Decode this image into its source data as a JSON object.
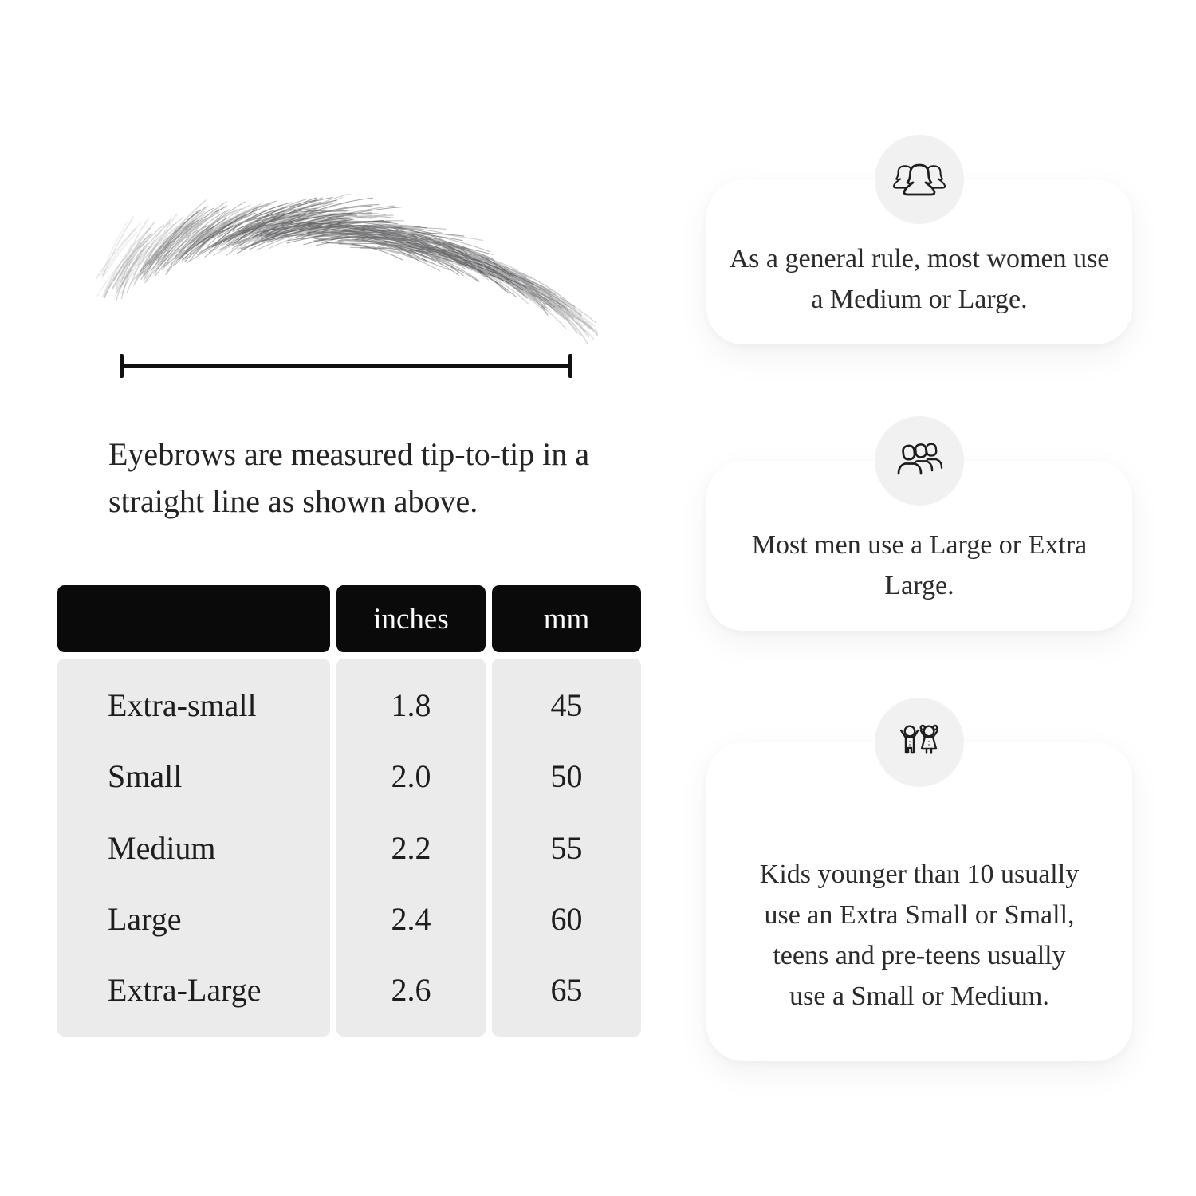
{
  "page": {
    "background": "#ffffff"
  },
  "figure": {
    "illustration": "hand-drawn eyebrow sketch measured tip to tip",
    "caption": "Eyebrows are measured tip-to-tip in a straight line as shown above."
  },
  "size_table": {
    "columns": [
      "",
      "inches",
      "mm"
    ],
    "rows": [
      {
        "size": "Extra-small",
        "inches": "1.8",
        "mm": "45"
      },
      {
        "size": "Small",
        "inches": "2.0",
        "mm": "50"
      },
      {
        "size": "Medium",
        "inches": "2.2",
        "mm": "55"
      },
      {
        "size": "Large",
        "inches": "2.4",
        "mm": "60"
      },
      {
        "size": "Extra-Large",
        "inches": "2.6",
        "mm": "65"
      }
    ]
  },
  "info_cards": [
    {
      "icon": "women-group-icon",
      "text": "As a general rule, most women use a Medium or Large."
    },
    {
      "icon": "men-group-icon",
      "text": "Most men use a Large or Extra Large."
    },
    {
      "icon": "kids-icon",
      "text": "Kids younger than 10 usually use an Extra Small or Small, teens and pre-teens usually use a Small or Medium."
    }
  ],
  "colors": {
    "table_header_bg": "#0a0a0a",
    "table_header_text": "#fafafa",
    "table_body_bg": "#ebebeb",
    "card_bg": "#ffffff",
    "icon_circle_bg": "#f1f1f1",
    "icon_stroke": "#1d1d1d",
    "measure_line": "#101010",
    "text_dark": "#242424"
  }
}
